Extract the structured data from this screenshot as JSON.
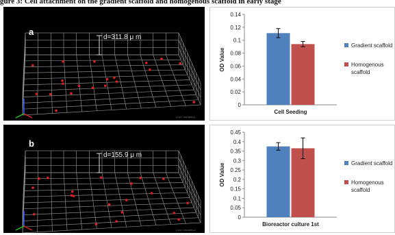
{
  "caption": "gure 3: Cell attachment on the gradient scaffold and homogenous scaffold in early stage",
  "panels": [
    {
      "label": "a",
      "measurement": "d=311.8 μ m",
      "scale_note": "1 Unit = 102.0408 μm"
    },
    {
      "label": "b",
      "measurement": "d=155.9 μ m",
      "scale_note": "1 Unit = 102.0408 μm"
    }
  ],
  "colors": {
    "gradient": "#4f81bd",
    "homogenous": "#c0504d",
    "error_bar": "#000000"
  },
  "chart_data": [
    {
      "type": "bar",
      "categories": [
        "Cell Seeding"
      ],
      "xlabel": "Cell Seeding",
      "ylabel": "OD Value",
      "ylim": [
        0,
        0.14
      ],
      "yticks": [
        "0",
        "0.02",
        "0.04",
        "0.06",
        "0.08",
        "0.1",
        "0.12",
        "0.14"
      ],
      "legend_position": "right",
      "series": [
        {
          "name": "Gradient scaffold",
          "values": [
            0.111
          ],
          "error": [
            0.007
          ]
        },
        {
          "name": "Homogenous scaffold",
          "values": [
            0.094
          ],
          "error": [
            0.004
          ]
        }
      ]
    },
    {
      "type": "bar",
      "categories": [
        "Bioreactor culture 1st"
      ],
      "xlabel": "Bioreactor culture 1st",
      "ylabel": "OD Value",
      "ylim": [
        0,
        0.45
      ],
      "yticks": [
        "0",
        "0.05",
        "0.1",
        "0.15",
        "0.2",
        "0.25",
        "0.3",
        "0.35",
        "0.4",
        "0.45"
      ],
      "legend_position": "right",
      "series": [
        {
          "name": "Gradient scaffold",
          "values": [
            0.375
          ],
          "error": [
            0.02
          ]
        },
        {
          "name": "Homogenous scaffold",
          "values": [
            0.365
          ],
          "error": [
            0.055
          ]
        }
      ]
    }
  ]
}
